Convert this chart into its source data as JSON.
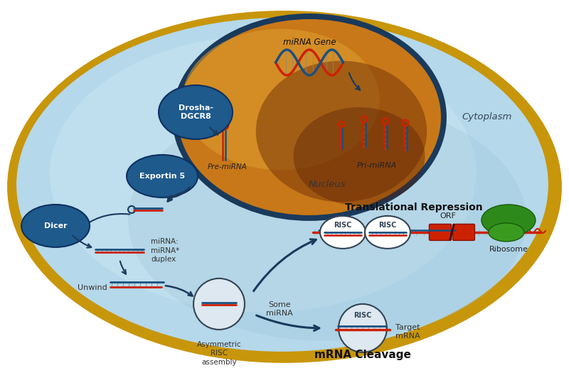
{
  "fig_width": 8.0,
  "fig_height": 5.25,
  "bg_color": "#ffffff",
  "cell_outer_color": "#c8960a",
  "cytoplasm_text": "Cytoplasm",
  "nucleus_text": "Nucleus",
  "mirna_gene_text": "miRNA Gene",
  "drosha_text": "Drosha-\nDGCR8",
  "exportin_text": "Exportin 5",
  "dicer_text": "Dicer",
  "pre_mirna_text": "Pre-miRNA",
  "pri_mirna_text": "Pri-miRNA",
  "mirna_duplex_text": "miRNA:\nmiRNA*\nduplex",
  "unwind_text": "Unwind",
  "asymmetric_text": "Asymmetric\nRISC\nassembly",
  "some_mirna_text": "Some\nmiRNA",
  "translational_repression_text": "Translational Repression",
  "orf_text": "ORF",
  "ribosome_text": "Ribosome",
  "mrna_cleavage_text": "mRNA Cleavage",
  "target_mrna_text": "Target\nmRNA",
  "risc_text": "RISC",
  "dark_blue": "#1a3a5c",
  "medium_blue": "#1e5a8c",
  "light_blue_bg": "#b8d8ea",
  "orange_gold": "#c87818",
  "red_color": "#cc2200",
  "green_color": "#2d7a1a",
  "dna_red": "#cc2200",
  "dna_blue": "#1a5080"
}
